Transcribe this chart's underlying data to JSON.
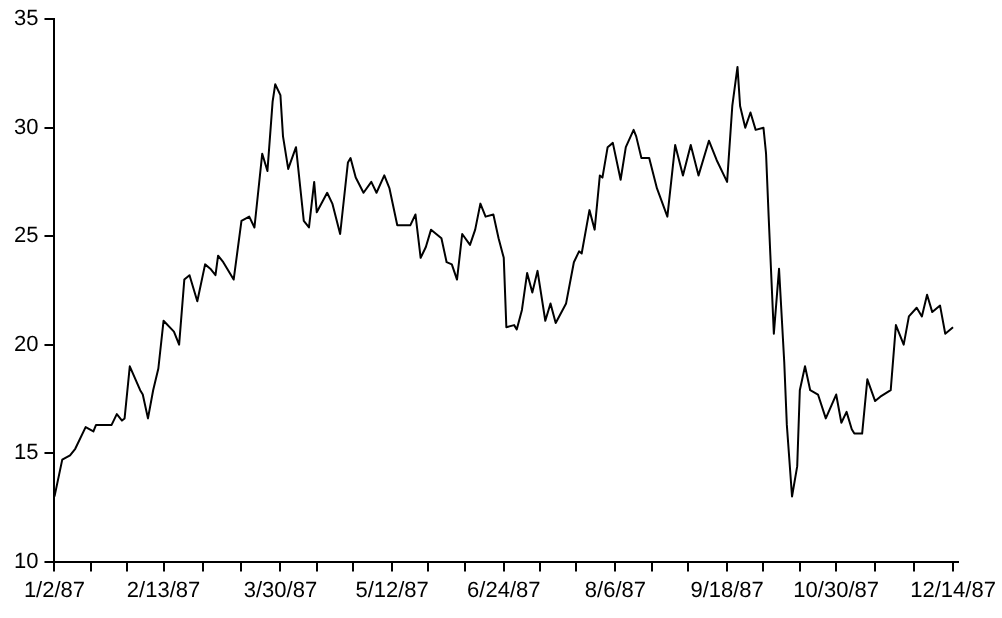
{
  "chart_data": {
    "type": "line",
    "x": [
      "1987-01-02",
      "1987-01-05",
      "1987-01-08",
      "1987-01-10",
      "1987-01-14",
      "1987-01-17",
      "1987-01-18",
      "1987-01-22",
      "1987-01-24",
      "1987-01-26",
      "1987-01-28",
      "1987-01-29",
      "1987-01-31",
      "1987-02-04",
      "1987-02-05",
      "1987-02-07",
      "1987-02-09",
      "1987-02-11",
      "1987-02-13",
      "1987-02-17",
      "1987-02-19",
      "1987-02-21",
      "1987-02-23",
      "1987-02-26",
      "1987-03-01",
      "1987-03-03",
      "1987-03-05",
      "1987-03-06",
      "1987-03-08",
      "1987-03-12",
      "1987-03-15",
      "1987-03-18",
      "1987-03-20",
      "1987-03-23",
      "1987-03-25",
      "1987-03-27",
      "1987-03-28",
      "1987-03-30",
      "1987-03-31",
      "1987-04-02",
      "1987-04-05",
      "1987-04-08",
      "1987-04-10",
      "1987-04-12",
      "1987-04-13",
      "1987-04-17",
      "1987-04-19",
      "1987-04-22",
      "1987-04-25",
      "1987-04-26",
      "1987-04-28",
      "1987-05-01",
      "1987-05-04",
      "1987-05-06",
      "1987-05-09",
      "1987-05-11",
      "1987-05-14",
      "1987-05-19",
      "1987-05-21",
      "1987-05-23",
      "1987-05-25",
      "1987-05-27",
      "1987-05-31",
      "1987-06-02",
      "1987-06-04",
      "1987-06-06",
      "1987-06-08",
      "1987-06-11",
      "1987-06-13",
      "1987-06-15",
      "1987-06-17",
      "1987-06-20",
      "1987-06-22",
      "1987-06-24",
      "1987-06-25",
      "1987-06-28",
      "1987-06-29",
      "1987-07-01",
      "1987-07-03",
      "1987-07-05",
      "1987-07-07",
      "1987-07-10",
      "1987-07-12",
      "1987-07-14",
      "1987-07-18",
      "1987-07-21",
      "1987-07-23",
      "1987-07-24",
      "1987-07-27",
      "1987-07-29",
      "1987-07-31",
      "1987-08-01",
      "1987-08-03",
      "1987-08-05",
      "1987-08-08",
      "1987-08-10",
      "1987-08-13",
      "1987-08-14",
      "1987-08-16",
      "1987-08-19",
      "1987-08-22",
      "1987-08-26",
      "1987-08-29",
      "1987-09-01",
      "1987-09-04",
      "1987-09-07",
      "1987-09-11",
      "1987-09-14",
      "1987-09-18",
      "1987-09-20",
      "1987-09-22",
      "1987-09-23",
      "1987-09-25",
      "1987-09-27",
      "1987-09-29",
      "1987-10-02",
      "1987-10-03",
      "1987-10-04",
      "1987-10-06",
      "1987-10-08",
      "1987-10-10",
      "1987-10-11",
      "1987-10-13",
      "1987-10-15",
      "1987-10-16",
      "1987-10-18",
      "1987-10-20",
      "1987-10-23",
      "1987-10-26",
      "1987-10-30",
      "1987-11-01",
      "1987-11-03",
      "1987-11-05",
      "1987-11-06",
      "1987-11-09",
      "1987-11-11",
      "1987-11-14",
      "1987-11-16",
      "1987-11-20",
      "1987-11-22",
      "1987-11-25",
      "1987-11-27",
      "1987-11-30",
      "1987-12-02",
      "1987-12-04",
      "1987-12-06",
      "1987-12-09",
      "1987-12-11",
      "1987-12-14"
    ],
    "series": [
      {
        "color": "#000000",
        "values": [
          13.0,
          14.7,
          14.9,
          15.2,
          16.2,
          16.0,
          16.3,
          16.3,
          16.3,
          16.8,
          16.5,
          16.6,
          19.0,
          17.9,
          17.7,
          16.6,
          17.9,
          18.9,
          21.1,
          20.6,
          20.0,
          23.0,
          23.2,
          22.0,
          23.7,
          23.5,
          23.2,
          24.1,
          23.8,
          23.0,
          25.7,
          25.9,
          25.4,
          28.8,
          28.0,
          31.2,
          32.0,
          31.5,
          29.6,
          28.1,
          29.1,
          25.7,
          25.4,
          27.5,
          26.1,
          27.0,
          26.5,
          25.1,
          28.4,
          28.6,
          27.7,
          27.0,
          27.5,
          27.0,
          27.8,
          27.2,
          25.5,
          25.5,
          26.0,
          24.0,
          24.5,
          25.3,
          24.9,
          23.8,
          23.7,
          23.0,
          25.1,
          24.6,
          25.3,
          26.5,
          25.9,
          26.0,
          24.9,
          24.0,
          20.8,
          20.9,
          20.7,
          21.6,
          23.3,
          22.4,
          23.4,
          21.1,
          21.9,
          21.0,
          21.9,
          23.8,
          24.3,
          24.2,
          26.2,
          25.3,
          27.8,
          27.7,
          29.1,
          29.3,
          27.6,
          29.1,
          29.9,
          29.6,
          28.6,
          28.6,
          27.2,
          25.9,
          29.2,
          27.8,
          29.2,
          27.8,
          29.4,
          28.5,
          27.5,
          31.0,
          32.8,
          31.0,
          30.0,
          30.7,
          29.9,
          30.0,
          28.8,
          25.9,
          20.5,
          23.5,
          19.2,
          16.3,
          13.0,
          14.4,
          17.9,
          19.0,
          17.9,
          17.7,
          16.6,
          17.7,
          16.4,
          16.9,
          16.1,
          15.9,
          15.9,
          18.4,
          17.4,
          17.6,
          17.9,
          20.9,
          20.0,
          21.3,
          21.7,
          21.3,
          22.3,
          21.5,
          21.8,
          20.5,
          20.8
        ]
      }
    ],
    "xlim": [
      "1987-01-02",
      "1987-12-16"
    ],
    "xticks": [
      {
        "value": "1987-01-02",
        "label": "1/2/87"
      },
      {
        "value": "1987-01-16",
        "label": null
      },
      {
        "value": "1987-01-30",
        "label": null
      },
      {
        "value": "1987-02-13",
        "label": "2/13/87"
      },
      {
        "value": "1987-02-28",
        "label": null
      },
      {
        "value": "1987-03-15",
        "label": null
      },
      {
        "value": "1987-03-30",
        "label": "3/30/87"
      },
      {
        "value": "1987-04-13",
        "label": null
      },
      {
        "value": "1987-04-27",
        "label": null
      },
      {
        "value": "1987-05-12",
        "label": "5/12/87"
      },
      {
        "value": "1987-05-26",
        "label": null
      },
      {
        "value": "1987-06-09",
        "label": null
      },
      {
        "value": "1987-06-24",
        "label": "6/24/87"
      },
      {
        "value": "1987-07-08",
        "label": null
      },
      {
        "value": "1987-07-22",
        "label": null
      },
      {
        "value": "1987-08-06",
        "label": "8/6/87"
      },
      {
        "value": "1987-08-20",
        "label": null
      },
      {
        "value": "1987-09-03",
        "label": null
      },
      {
        "value": "1987-09-18",
        "label": "9/18/87"
      },
      {
        "value": "1987-10-02",
        "label": null
      },
      {
        "value": "1987-10-16",
        "label": null
      },
      {
        "value": "1987-10-30",
        "label": "10/30/87"
      },
      {
        "value": "1987-11-14",
        "label": null
      },
      {
        "value": "1987-11-29",
        "label": null
      },
      {
        "value": "1987-12-14",
        "label": "12/14/87"
      }
    ],
    "ylim": [
      10,
      35
    ],
    "yticks": [
      10,
      15,
      20,
      25,
      30,
      35
    ],
    "grid": false,
    "legend": false,
    "marker": "none",
    "line_style": "solid"
  }
}
